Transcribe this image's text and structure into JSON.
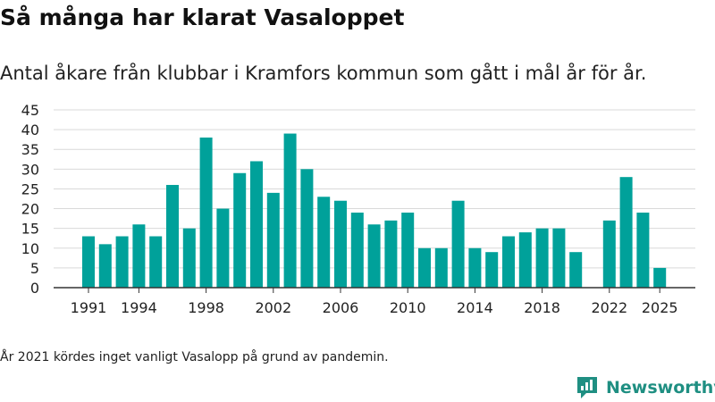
{
  "header": {
    "title": "Så många har klarat Vasaloppet",
    "subtitle": "Antal åkare från klubbar i Kramfors kommun som gått i mål år för år."
  },
  "footnote": "År 2021 kördes inget vanligt Vasalopp på grund av pandemin.",
  "brand": {
    "name": "Newsworthy",
    "icon": "newsworthy-logo-icon",
    "color": "#1f8f82"
  },
  "colors": {
    "bar": "#00a19a",
    "grid": "#d9d9d9",
    "axis": "#333333"
  },
  "chart_data": {
    "type": "bar",
    "x": [
      1991,
      1992,
      1993,
      1994,
      1995,
      1996,
      1997,
      1998,
      1999,
      2000,
      2001,
      2002,
      2003,
      2004,
      2005,
      2006,
      2007,
      2008,
      2009,
      2010,
      2011,
      2012,
      2013,
      2014,
      2015,
      2016,
      2017,
      2018,
      2019,
      2020,
      2021,
      2022,
      2023,
      2024,
      2025
    ],
    "values": [
      13,
      11,
      13,
      16,
      13,
      26,
      15,
      38,
      20,
      29,
      32,
      24,
      39,
      30,
      23,
      22,
      19,
      16,
      17,
      19,
      10,
      10,
      22,
      10,
      9,
      13,
      14,
      15,
      15,
      9,
      null,
      17,
      28,
      19,
      5
    ],
    "xticks": [
      "1991",
      "1994",
      "1998",
      "2002",
      "2006",
      "2010",
      "2014",
      "2018",
      "2022",
      "2025"
    ],
    "yticks": [
      "0",
      "5",
      "10",
      "15",
      "20",
      "25",
      "30",
      "35",
      "40",
      "45"
    ],
    "ylim": [
      0,
      45
    ],
    "grid": true,
    "legend": "none"
  }
}
